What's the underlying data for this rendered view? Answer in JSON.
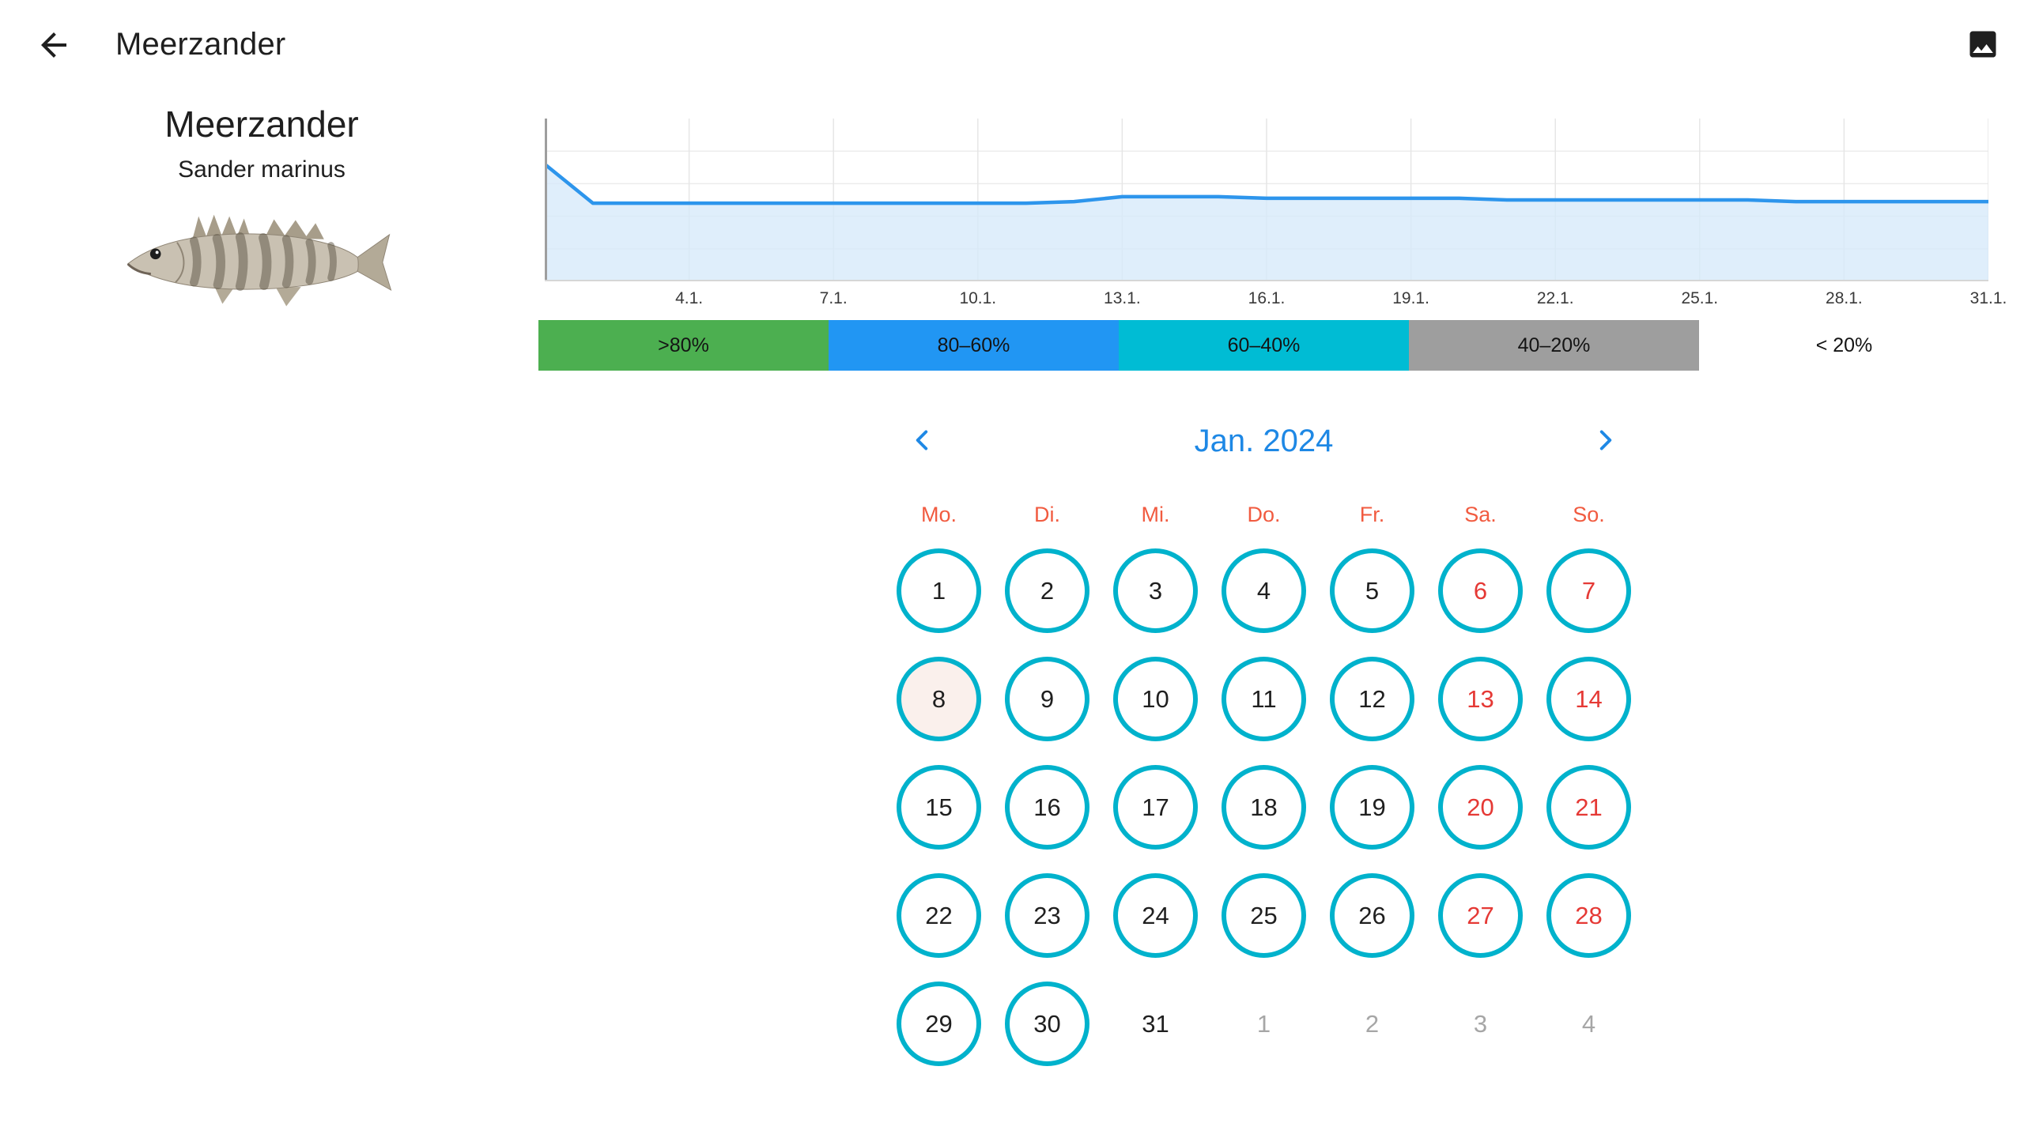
{
  "header": {
    "title": "Meerzander",
    "back_icon": "arrow-left-icon",
    "photo_icon": "image-icon"
  },
  "species": {
    "name": "Meerzander",
    "latin": "Sander marinus"
  },
  "chart_data": {
    "type": "area",
    "title": "",
    "xlabel": "",
    "ylabel": "",
    "xlim": [
      1,
      31
    ],
    "ylim": [
      0,
      100
    ],
    "x_tick_days": [
      4,
      7,
      10,
      13,
      16,
      19,
      22,
      25,
      28,
      31
    ],
    "x_tick_labels": [
      "4.1.",
      "7.1.",
      "10.1.",
      "13.1.",
      "16.1.",
      "19.1.",
      "22.1.",
      "25.1.",
      "28.1.",
      "31.1."
    ],
    "x": [
      1,
      2,
      3,
      4,
      5,
      6,
      7,
      8,
      9,
      10,
      11,
      12,
      13,
      14,
      15,
      16,
      17,
      18,
      19,
      20,
      21,
      22,
      23,
      24,
      25,
      26,
      27,
      28,
      29,
      30,
      31
    ],
    "values": [
      72,
      48,
      48,
      48,
      48,
      48,
      48,
      48,
      48,
      48,
      48,
      49,
      52,
      52,
      52,
      51,
      51,
      51,
      51,
      51,
      50,
      50,
      50,
      50,
      50,
      50,
      49,
      49,
      49,
      49,
      49
    ],
    "grid": true,
    "line_color": "#2d95ec",
    "fill_color": "#d6e9fa",
    "axis_color": "#9e9e9e"
  },
  "legend": {
    "segments": [
      {
        "label": ">80%",
        "color": "#4caf50"
      },
      {
        "label": "80–60%",
        "color": "#2196f3"
      },
      {
        "label": "60–40%",
        "color": "#00bcd4"
      },
      {
        "label": "40–20%",
        "color": "#9e9e9e"
      },
      {
        "label": "< 20%",
        "color": "#ffffff"
      }
    ]
  },
  "calendar": {
    "title": "Jan. 2024",
    "prev_icon": "chevron-left-icon",
    "next_icon": "chevron-right-icon",
    "weekdays": [
      "Mo.",
      "Di.",
      "Mi.",
      "Do.",
      "Fr.",
      "Sa.",
      "So."
    ],
    "days": [
      {
        "label": "1",
        "circle": true,
        "weekend": false,
        "highlight": false,
        "muted": false
      },
      {
        "label": "2",
        "circle": true,
        "weekend": false,
        "highlight": false,
        "muted": false
      },
      {
        "label": "3",
        "circle": true,
        "weekend": false,
        "highlight": false,
        "muted": false
      },
      {
        "label": "4",
        "circle": true,
        "weekend": false,
        "highlight": false,
        "muted": false
      },
      {
        "label": "5",
        "circle": true,
        "weekend": false,
        "highlight": false,
        "muted": false
      },
      {
        "label": "6",
        "circle": true,
        "weekend": true,
        "highlight": false,
        "muted": false
      },
      {
        "label": "7",
        "circle": true,
        "weekend": true,
        "highlight": false,
        "muted": false
      },
      {
        "label": "8",
        "circle": true,
        "weekend": false,
        "highlight": true,
        "muted": false
      },
      {
        "label": "9",
        "circle": true,
        "weekend": false,
        "highlight": false,
        "muted": false
      },
      {
        "label": "10",
        "circle": true,
        "weekend": false,
        "highlight": false,
        "muted": false
      },
      {
        "label": "11",
        "circle": true,
        "weekend": false,
        "highlight": false,
        "muted": false
      },
      {
        "label": "12",
        "circle": true,
        "weekend": false,
        "highlight": false,
        "muted": false
      },
      {
        "label": "13",
        "circle": true,
        "weekend": true,
        "highlight": false,
        "muted": false
      },
      {
        "label": "14",
        "circle": true,
        "weekend": true,
        "highlight": false,
        "muted": false
      },
      {
        "label": "15",
        "circle": true,
        "weekend": false,
        "highlight": false,
        "muted": false
      },
      {
        "label": "16",
        "circle": true,
        "weekend": false,
        "highlight": false,
        "muted": false
      },
      {
        "label": "17",
        "circle": true,
        "weekend": false,
        "highlight": false,
        "muted": false
      },
      {
        "label": "18",
        "circle": true,
        "weekend": false,
        "highlight": false,
        "muted": false
      },
      {
        "label": "19",
        "circle": true,
        "weekend": false,
        "highlight": false,
        "muted": false
      },
      {
        "label": "20",
        "circle": true,
        "weekend": true,
        "highlight": false,
        "muted": false
      },
      {
        "label": "21",
        "circle": true,
        "weekend": true,
        "highlight": false,
        "muted": false
      },
      {
        "label": "22",
        "circle": true,
        "weekend": false,
        "highlight": false,
        "muted": false
      },
      {
        "label": "23",
        "circle": true,
        "weekend": false,
        "highlight": false,
        "muted": false
      },
      {
        "label": "24",
        "circle": true,
        "weekend": false,
        "highlight": false,
        "muted": false
      },
      {
        "label": "25",
        "circle": true,
        "weekend": false,
        "highlight": false,
        "muted": false
      },
      {
        "label": "26",
        "circle": true,
        "weekend": false,
        "highlight": false,
        "muted": false
      },
      {
        "label": "27",
        "circle": true,
        "weekend": true,
        "highlight": false,
        "muted": false
      },
      {
        "label": "28",
        "circle": true,
        "weekend": true,
        "highlight": false,
        "muted": false
      },
      {
        "label": "29",
        "circle": true,
        "weekend": false,
        "highlight": false,
        "muted": false
      },
      {
        "label": "30",
        "circle": true,
        "weekend": false,
        "highlight": false,
        "muted": false
      },
      {
        "label": "31",
        "circle": false,
        "weekend": false,
        "highlight": false,
        "muted": false
      },
      {
        "label": "1",
        "circle": false,
        "weekend": false,
        "highlight": false,
        "muted": true
      },
      {
        "label": "2",
        "circle": false,
        "weekend": false,
        "highlight": false,
        "muted": true
      },
      {
        "label": "3",
        "circle": false,
        "weekend": false,
        "highlight": false,
        "muted": true
      },
      {
        "label": "4",
        "circle": false,
        "weekend": false,
        "highlight": false,
        "muted": true
      }
    ]
  },
  "colors": {
    "calendar_circle": "#00b2cc",
    "calendar_title": "#1e88e5",
    "weekday_header": "#f15b40",
    "weekend_number": "#e53935",
    "chart_line": "#2d95ec",
    "chart_fill": "#d6e9fa"
  }
}
